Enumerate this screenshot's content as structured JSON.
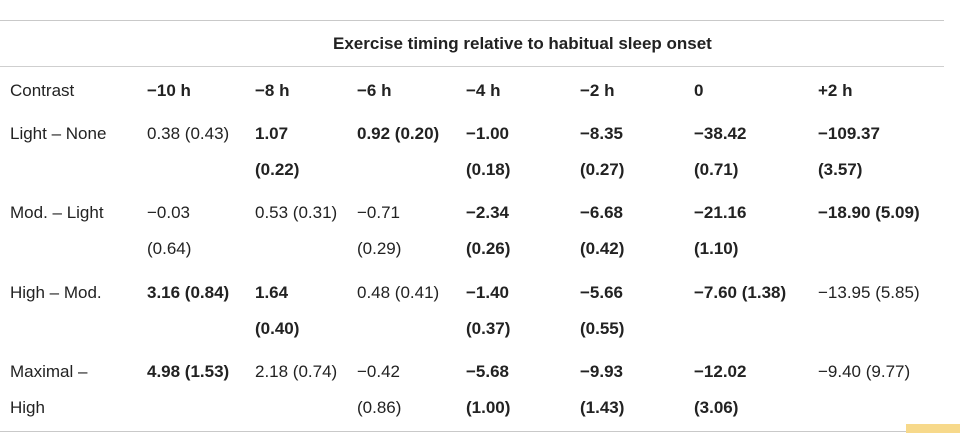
{
  "table": {
    "group_header": "Exercise timing relative to habitual sleep onset",
    "columns": [
      "Contrast",
      "−10 h",
      "−8 h",
      "−6 h",
      "−4 h",
      "−2 h",
      "0",
      "+2 h"
    ],
    "rows": [
      {
        "label": [
          "Light – None"
        ],
        "cells": [
          {
            "lines": [
              "0.38 (0.43)"
            ],
            "bold": false
          },
          {
            "lines": [
              "1.07",
              "(0.22)"
            ],
            "bold": true
          },
          {
            "lines": [
              "0.92 (0.20)"
            ],
            "bold": true
          },
          {
            "lines": [
              "−1.00",
              "(0.18)"
            ],
            "bold": true
          },
          {
            "lines": [
              "−8.35",
              "(0.27)"
            ],
            "bold": true
          },
          {
            "lines": [
              "−38.42",
              "(0.71)"
            ],
            "bold": true
          },
          {
            "lines": [
              "−109.37",
              "(3.57)"
            ],
            "bold": true
          }
        ]
      },
      {
        "label": [
          "Mod. – Light"
        ],
        "cells": [
          {
            "lines": [
              "−0.03",
              "(0.64)"
            ],
            "bold": false
          },
          {
            "lines": [
              "0.53 (0.31)"
            ],
            "bold": false
          },
          {
            "lines": [
              "−0.71",
              "(0.29)"
            ],
            "bold": false
          },
          {
            "lines": [
              "−2.34",
              "(0.26)"
            ],
            "bold": true
          },
          {
            "lines": [
              "−6.68",
              "(0.42)"
            ],
            "bold": true
          },
          {
            "lines": [
              "−21.16",
              "(1.10)"
            ],
            "bold": true
          },
          {
            "lines": [
              "−18.90 (5.09)"
            ],
            "bold": true
          }
        ]
      },
      {
        "label": [
          "High – Mod."
        ],
        "cells": [
          {
            "lines": [
              "3.16 (0.84)"
            ],
            "bold": true
          },
          {
            "lines": [
              "1.64",
              "(0.40)"
            ],
            "bold": true
          },
          {
            "lines": [
              "0.48 (0.41)"
            ],
            "bold": false
          },
          {
            "lines": [
              "−1.40",
              "(0.37)"
            ],
            "bold": true
          },
          {
            "lines": [
              "−5.66",
              "(0.55)"
            ],
            "bold": true
          },
          {
            "lines": [
              "−7.60 (1.38)"
            ],
            "bold": true
          },
          {
            "lines": [
              "−13.95 (5.85)"
            ],
            "bold": false
          }
        ]
      },
      {
        "label": [
          "Maximal –",
          "High"
        ],
        "cells": [
          {
            "lines": [
              "4.98 (1.53)"
            ],
            "bold": true
          },
          {
            "lines": [
              "2.18 (0.74)"
            ],
            "bold": false
          },
          {
            "lines": [
              "−0.42",
              "(0.86)"
            ],
            "bold": false
          },
          {
            "lines": [
              "−5.68",
              "(1.00)"
            ],
            "bold": true
          },
          {
            "lines": [
              "−9.93",
              "(1.43)"
            ],
            "bold": true
          },
          {
            "lines": [
              "−12.02",
              "(3.06)"
            ],
            "bold": true
          },
          {
            "lines": [
              "−9.40 (9.77)"
            ],
            "bold": false
          }
        ]
      }
    ]
  },
  "colors": {
    "text": "#222222",
    "rule": "#c9c9c9",
    "accent": "#f7d98b"
  }
}
